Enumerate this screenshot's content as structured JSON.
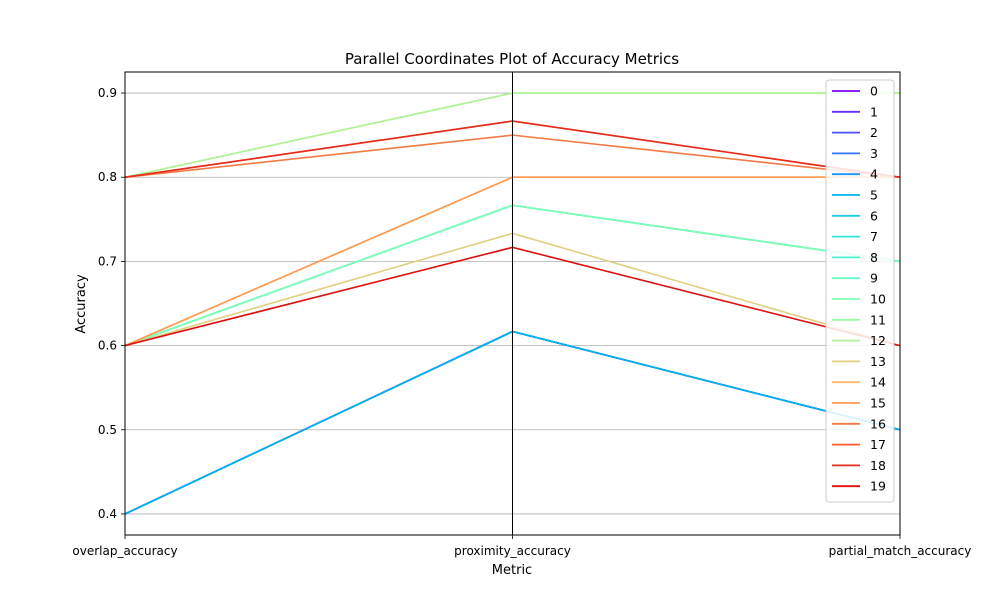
{
  "chart_data": {
    "type": "line",
    "title": "Parallel Coordinates Plot of Accuracy Metrics",
    "xlabel": "Metric",
    "ylabel": "Accuracy",
    "categories": [
      "overlap_accuracy",
      "proximity_accuracy",
      "partial_match_accuracy"
    ],
    "ylim": [
      0.375,
      0.925
    ],
    "yticks": [
      "0.4",
      "0.5",
      "0.6",
      "0.7",
      "0.8",
      "0.9"
    ],
    "grid": "horizontal",
    "legend_position": "top-right",
    "series": [
      {
        "name": "0",
        "color": "#8000ff",
        "values": [
          0.4,
          0.6167,
          0.5
        ]
      },
      {
        "name": "1",
        "color": "#6629fe",
        "values": [
          0.4,
          0.6167,
          0.5
        ]
      },
      {
        "name": "2",
        "color": "#4c50fc",
        "values": [
          0.4,
          0.6167,
          0.5
        ]
      },
      {
        "name": "3",
        "color": "#3176f8",
        "values": [
          0.4,
          0.6167,
          0.5
        ]
      },
      {
        "name": "4",
        "color": "#1996f3",
        "values": [
          0.4,
          0.6167,
          0.5
        ]
      },
      {
        "name": "5",
        "color": "#00b5eb",
        "values": [
          0.4,
          0.6167,
          0.5
        ]
      },
      {
        "name": "6",
        "color": "#1acfe3",
        "values": [
          0.6,
          0.7667,
          0.7
        ]
      },
      {
        "name": "7",
        "color": "#33e5d9",
        "values": [
          0.6,
          0.7667,
          0.7
        ]
      },
      {
        "name": "8",
        "color": "#4cf2ce",
        "values": [
          0.6,
          0.7667,
          0.7
        ]
      },
      {
        "name": "9",
        "color": "#66fcc2",
        "values": [
          0.6,
          0.7667,
          0.7
        ]
      },
      {
        "name": "10",
        "color": "#80ffb4",
        "values": [
          0.6,
          0.7667,
          0.7
        ]
      },
      {
        "name": "11",
        "color": "#99fca5",
        "values": [
          0.8,
          0.9,
          0.9
        ]
      },
      {
        "name": "12",
        "color": "#b3f296",
        "values": [
          0.8,
          0.9,
          0.9
        ]
      },
      {
        "name": "13",
        "color": "#e0d080",
        "values": [
          0.6,
          0.7333,
          0.6
        ]
      },
      {
        "name": "14",
        "color": "#ffb767",
        "values": [
          0.6,
          0.8,
          0.8
        ]
      },
      {
        "name": "15",
        "color": "#ff9a50",
        "values": [
          0.6,
          0.8,
          0.8
        ]
      },
      {
        "name": "16",
        "color": "#f27a44",
        "values": [
          0.8,
          0.85,
          0.8
        ]
      },
      {
        "name": "17",
        "color": "#ff5a2e",
        "values": [
          0.8,
          0.8667,
          0.8
        ]
      },
      {
        "name": "18",
        "color": "#e52d1e",
        "values": [
          0.8,
          0.8667,
          0.8
        ]
      },
      {
        "name": "19",
        "color": "#dd0f0f",
        "values": [
          0.6,
          0.7167,
          0.6
        ]
      }
    ]
  }
}
